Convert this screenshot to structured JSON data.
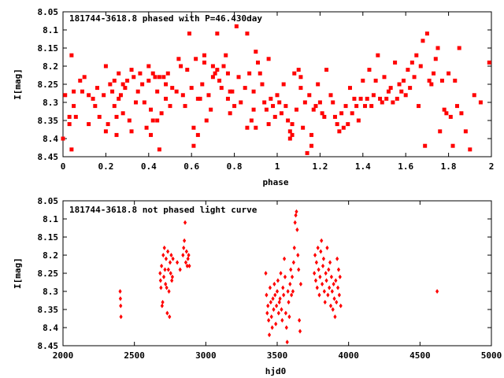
{
  "chart_data": [
    {
      "type": "scatter",
      "title": "181744-3618.8 phased with P=46.430day",
      "xlabel": "phase",
      "ylabel": "I[mag]",
      "xlim": [
        0,
        2
      ],
      "ylim": [
        8.05,
        8.45
      ],
      "y_inverted": true,
      "x_ticks": [
        "0",
        "0.2",
        "0.4",
        "0.6",
        "0.8",
        "1",
        "1.2",
        "1.4",
        "1.6",
        "1.8",
        "2"
      ],
      "y_ticks": [
        "8.05",
        "8.1",
        "8.15",
        "8.2",
        "8.25",
        "8.3",
        "8.35",
        "8.4",
        "8.45"
      ],
      "marker_color": "#ff0000",
      "grid": false,
      "points": [
        [
          0.0,
          8.4
        ],
        [
          0.01,
          8.28
        ],
        [
          0.03,
          8.34
        ],
        [
          0.03,
          8.36
        ],
        [
          0.04,
          8.17
        ],
        [
          0.04,
          8.43
        ],
        [
          0.05,
          8.27
        ],
        [
          0.05,
          8.31
        ],
        [
          0.06,
          8.34
        ],
        [
          0.08,
          8.24
        ],
        [
          0.09,
          8.27
        ],
        [
          0.1,
          8.23
        ],
        [
          0.12,
          8.28
        ],
        [
          0.12,
          8.36
        ],
        [
          0.14,
          8.29
        ],
        [
          0.15,
          8.31
        ],
        [
          0.16,
          8.26
        ],
        [
          0.17,
          8.34
        ],
        [
          0.19,
          8.28
        ],
        [
          0.2,
          8.2
        ],
        [
          0.2,
          8.38
        ],
        [
          0.21,
          8.36
        ],
        [
          0.22,
          8.25
        ],
        [
          0.23,
          8.27
        ],
        [
          0.24,
          8.24
        ],
        [
          0.24,
          8.31
        ],
        [
          0.25,
          8.34
        ],
        [
          0.25,
          8.39
        ],
        [
          0.26,
          8.22
        ],
        [
          0.26,
          8.29
        ],
        [
          0.27,
          8.28
        ],
        [
          0.28,
          8.25
        ],
        [
          0.28,
          8.33
        ],
        [
          0.29,
          8.26
        ],
        [
          0.3,
          8.24
        ],
        [
          0.31,
          8.35
        ],
        [
          0.32,
          8.38
        ],
        [
          0.32,
          8.21
        ],
        [
          0.33,
          8.23
        ],
        [
          0.34,
          8.3
        ],
        [
          0.35,
          8.27
        ],
        [
          0.36,
          8.22
        ],
        [
          0.37,
          8.25
        ],
        [
          0.38,
          8.3
        ],
        [
          0.39,
          8.37
        ],
        [
          0.4,
          8.2
        ],
        [
          0.4,
          8.24
        ],
        [
          0.41,
          8.32
        ],
        [
          0.41,
          8.39
        ],
        [
          0.42,
          8.22
        ],
        [
          0.42,
          8.35
        ],
        [
          0.43,
          8.23
        ],
        [
          0.44,
          8.27
        ],
        [
          0.44,
          8.35
        ],
        [
          0.45,
          8.23
        ],
        [
          0.45,
          8.43
        ],
        [
          0.46,
          8.33
        ],
        [
          0.47,
          8.23
        ],
        [
          0.48,
          8.25
        ],
        [
          0.48,
          8.29
        ],
        [
          0.49,
          8.22
        ],
        [
          0.5,
          8.31
        ],
        [
          0.51,
          8.26
        ],
        [
          0.53,
          8.27
        ],
        [
          0.54,
          8.18
        ],
        [
          0.55,
          8.2
        ],
        [
          0.56,
          8.28
        ],
        [
          0.57,
          8.31
        ],
        [
          0.58,
          8.21
        ],
        [
          0.59,
          8.11
        ],
        [
          0.6,
          8.26
        ],
        [
          0.61,
          8.37
        ],
        [
          0.61,
          8.42
        ],
        [
          0.62,
          8.18
        ],
        [
          0.63,
          8.29
        ],
        [
          0.63,
          8.39
        ],
        [
          0.64,
          8.29
        ],
        [
          0.65,
          8.25
        ],
        [
          0.66,
          8.17
        ],
        [
          0.66,
          8.19
        ],
        [
          0.67,
          8.35
        ],
        [
          0.68,
          8.28
        ],
        [
          0.69,
          8.32
        ],
        [
          0.7,
          8.2
        ],
        [
          0.7,
          8.23
        ],
        [
          0.71,
          8.22
        ],
        [
          0.72,
          8.11
        ],
        [
          0.72,
          8.21
        ],
        [
          0.73,
          8.24
        ],
        [
          0.74,
          8.26
        ],
        [
          0.75,
          8.2
        ],
        [
          0.76,
          8.17
        ],
        [
          0.77,
          8.22
        ],
        [
          0.77,
          8.29
        ],
        [
          0.78,
          8.27
        ],
        [
          0.78,
          8.33
        ],
        [
          0.79,
          8.27
        ],
        [
          0.8,
          8.31
        ],
        [
          0.81,
          8.09
        ],
        [
          0.82,
          8.23
        ],
        [
          0.83,
          8.3
        ],
        [
          0.85,
          8.26
        ],
        [
          0.86,
          8.11
        ],
        [
          0.86,
          8.37
        ],
        [
          0.87,
          8.22
        ],
        [
          0.88,
          8.35
        ],
        [
          0.89,
          8.27
        ],
        [
          0.89,
          8.32
        ],
        [
          0.9,
          8.16
        ],
        [
          0.9,
          8.37
        ],
        [
          0.91,
          8.19
        ],
        [
          0.92,
          8.22
        ],
        [
          0.93,
          8.25
        ],
        [
          0.94,
          8.3
        ],
        [
          0.95,
          8.32
        ],
        [
          0.96,
          8.18
        ],
        [
          0.96,
          8.36
        ],
        [
          0.97,
          8.29
        ],
        [
          0.98,
          8.31
        ],
        [
          0.99,
          8.34
        ],
        [
          1.0,
          8.28
        ],
        [
          1.01,
          8.3
        ],
        [
          1.02,
          8.33
        ],
        [
          1.03,
          8.25
        ],
        [
          1.04,
          8.31
        ],
        [
          1.05,
          8.35
        ],
        [
          1.06,
          8.38
        ],
        [
          1.06,
          8.4
        ],
        [
          1.07,
          8.36
        ],
        [
          1.07,
          8.39
        ],
        [
          1.08,
          8.22
        ],
        [
          1.09,
          8.32
        ],
        [
          1.1,
          8.21
        ],
        [
          1.11,
          8.23
        ],
        [
          1.11,
          8.26
        ],
        [
          1.12,
          8.37
        ],
        [
          1.13,
          8.3
        ],
        [
          1.14,
          8.44
        ],
        [
          1.15,
          8.28
        ],
        [
          1.16,
          8.39
        ],
        [
          1.16,
          8.42
        ],
        [
          1.17,
          8.32
        ],
        [
          1.18,
          8.31
        ],
        [
          1.19,
          8.25
        ],
        [
          1.2,
          8.3
        ],
        [
          1.21,
          8.33
        ],
        [
          1.22,
          8.34
        ],
        [
          1.23,
          8.21
        ],
        [
          1.25,
          8.28
        ],
        [
          1.26,
          8.3
        ],
        [
          1.27,
          8.34
        ],
        [
          1.28,
          8.36
        ],
        [
          1.29,
          8.38
        ],
        [
          1.3,
          8.33
        ],
        [
          1.31,
          8.37
        ],
        [
          1.32,
          8.31
        ],
        [
          1.33,
          8.36
        ],
        [
          1.34,
          8.26
        ],
        [
          1.35,
          8.33
        ],
        [
          1.36,
          8.29
        ],
        [
          1.37,
          8.31
        ],
        [
          1.38,
          8.35
        ],
        [
          1.39,
          8.29
        ],
        [
          1.4,
          8.24
        ],
        [
          1.41,
          8.31
        ],
        [
          1.42,
          8.29
        ],
        [
          1.43,
          8.21
        ],
        [
          1.44,
          8.31
        ],
        [
          1.45,
          8.28
        ],
        [
          1.46,
          8.24
        ],
        [
          1.47,
          8.17
        ],
        [
          1.48,
          8.29
        ],
        [
          1.49,
          8.3
        ],
        [
          1.5,
          8.23
        ],
        [
          1.51,
          8.29
        ],
        [
          1.52,
          8.27
        ],
        [
          1.53,
          8.26
        ],
        [
          1.54,
          8.3
        ],
        [
          1.55,
          8.19
        ],
        [
          1.56,
          8.29
        ],
        [
          1.57,
          8.25
        ],
        [
          1.58,
          8.27
        ],
        [
          1.59,
          8.24
        ],
        [
          1.6,
          8.28
        ],
        [
          1.61,
          8.21
        ],
        [
          1.62,
          8.26
        ],
        [
          1.63,
          8.19
        ],
        [
          1.64,
          8.23
        ],
        [
          1.65,
          8.17
        ],
        [
          1.66,
          8.31
        ],
        [
          1.67,
          8.2
        ],
        [
          1.68,
          8.13
        ],
        [
          1.69,
          8.42
        ],
        [
          1.7,
          8.11
        ],
        [
          1.71,
          8.24
        ],
        [
          1.72,
          8.25
        ],
        [
          1.73,
          8.22
        ],
        [
          1.74,
          8.18
        ],
        [
          1.75,
          8.15
        ],
        [
          1.76,
          8.38
        ],
        [
          1.77,
          8.24
        ],
        [
          1.78,
          8.32
        ],
        [
          1.79,
          8.33
        ],
        [
          1.8,
          8.22
        ],
        [
          1.81,
          8.34
        ],
        [
          1.82,
          8.42
        ],
        [
          1.83,
          8.24
        ],
        [
          1.84,
          8.31
        ],
        [
          1.85,
          8.15
        ],
        [
          1.86,
          8.33
        ],
        [
          1.88,
          8.38
        ],
        [
          1.9,
          8.43
        ],
        [
          1.92,
          8.28
        ],
        [
          1.95,
          8.3
        ],
        [
          1.99,
          8.19
        ]
      ]
    },
    {
      "type": "scatter",
      "title": "181744-3618.8 not phased light curve",
      "xlabel": "hjd0",
      "ylabel": "I[mag]",
      "xlim": [
        2000,
        5000
      ],
      "ylim": [
        8.05,
        8.45
      ],
      "y_inverted": true,
      "x_ticks": [
        "2000",
        "2500",
        "3000",
        "3500",
        "4000",
        "4500",
        "5000"
      ],
      "y_ticks": [
        "8.05",
        "8.1",
        "8.15",
        "8.2",
        "8.25",
        "8.3",
        "8.35",
        "8.4",
        "8.45"
      ],
      "marker_color": "#ff0000",
      "grid": false,
      "points": [
        [
          2400,
          8.3
        ],
        [
          2402,
          8.32
        ],
        [
          2404,
          8.34
        ],
        [
          2406,
          8.37
        ],
        [
          2680,
          8.25
        ],
        [
          2683,
          8.27
        ],
        [
          2686,
          8.29
        ],
        [
          2690,
          8.23
        ],
        [
          2694,
          8.34
        ],
        [
          2698,
          8.33
        ],
        [
          2702,
          8.2
        ],
        [
          2706,
          8.26
        ],
        [
          2710,
          8.18
        ],
        [
          2714,
          8.24
        ],
        [
          2718,
          8.28
        ],
        [
          2722,
          8.21
        ],
        [
          2726,
          8.29
        ],
        [
          2730,
          8.36
        ],
        [
          2734,
          8.19
        ],
        [
          2738,
          8.24
        ],
        [
          2742,
          8.3
        ],
        [
          2746,
          8.37
        ],
        [
          2750,
          8.22
        ],
        [
          2754,
          8.25
        ],
        [
          2758,
          8.2
        ],
        [
          2762,
          8.27
        ],
        [
          2766,
          8.26
        ],
        [
          2770,
          8.21
        ],
        [
          2800,
          8.22
        ],
        [
          2820,
          8.24
        ],
        [
          2840,
          8.2
        ],
        [
          2845,
          8.18
        ],
        [
          2850,
          8.16
        ],
        [
          2855,
          8.11
        ],
        [
          2860,
          8.22
        ],
        [
          2865,
          8.19
        ],
        [
          2870,
          8.23
        ],
        [
          2875,
          8.21
        ],
        [
          2880,
          8.2
        ],
        [
          2885,
          8.23
        ],
        [
          3420,
          8.25
        ],
        [
          3425,
          8.31
        ],
        [
          3430,
          8.36
        ],
        [
          3435,
          8.34
        ],
        [
          3440,
          8.38
        ],
        [
          3445,
          8.42
        ],
        [
          3450,
          8.29
        ],
        [
          3455,
          8.33
        ],
        [
          3460,
          8.37
        ],
        [
          3465,
          8.4
        ],
        [
          3470,
          8.32
        ],
        [
          3475,
          8.35
        ],
        [
          3480,
          8.28
        ],
        [
          3485,
          8.31
        ],
        [
          3490,
          8.39
        ],
        [
          3495,
          8.34
        ],
        [
          3500,
          8.3
        ],
        [
          3505,
          8.27
        ],
        [
          3510,
          8.36
        ],
        [
          3515,
          8.33
        ],
        [
          3520,
          8.32
        ],
        [
          3525,
          8.25
        ],
        [
          3530,
          8.35
        ],
        [
          3535,
          8.38
        ],
        [
          3540,
          8.29
        ],
        [
          3545,
          8.31
        ],
        [
          3550,
          8.21
        ],
        [
          3555,
          8.26
        ],
        [
          3560,
          8.36
        ],
        [
          3565,
          8.4
        ],
        [
          3570,
          8.44
        ],
        [
          3575,
          8.3
        ],
        [
          3580,
          8.33
        ],
        [
          3585,
          8.37
        ],
        [
          3590,
          8.28
        ],
        [
          3595,
          8.24
        ],
        [
          3600,
          8.31
        ],
        [
          3605,
          8.26
        ],
        [
          3610,
          8.3
        ],
        [
          3615,
          8.22
        ],
        [
          3620,
          8.18
        ],
        [
          3625,
          8.11
        ],
        [
          3630,
          8.09
        ],
        [
          3635,
          8.08
        ],
        [
          3640,
          8.13
        ],
        [
          3645,
          8.2
        ],
        [
          3650,
          8.24
        ],
        [
          3655,
          8.38
        ],
        [
          3660,
          8.41
        ],
        [
          3665,
          8.28
        ],
        [
          3760,
          8.25
        ],
        [
          3765,
          8.2
        ],
        [
          3770,
          8.27
        ],
        [
          3775,
          8.22
        ],
        [
          3780,
          8.29
        ],
        [
          3785,
          8.18
        ],
        [
          3790,
          8.24
        ],
        [
          3795,
          8.31
        ],
        [
          3800,
          8.26
        ],
        [
          3805,
          8.19
        ],
        [
          3810,
          8.16
        ],
        [
          3815,
          8.28
        ],
        [
          3820,
          8.23
        ],
        [
          3825,
          8.21
        ],
        [
          3830,
          8.3
        ],
        [
          3835,
          8.33
        ],
        [
          3840,
          8.25
        ],
        [
          3845,
          8.27
        ],
        [
          3850,
          8.18
        ],
        [
          3855,
          8.31
        ],
        [
          3860,
          8.24
        ],
        [
          3865,
          8.29
        ],
        [
          3870,
          8.22
        ],
        [
          3875,
          8.34
        ],
        [
          3880,
          8.26
        ],
        [
          3885,
          8.3
        ],
        [
          3890,
          8.35
        ],
        [
          3895,
          8.28
        ],
        [
          3900,
          8.32
        ],
        [
          3905,
          8.37
        ],
        [
          3910,
          8.27
        ],
        [
          3915,
          8.33
        ],
        [
          3920,
          8.21
        ],
        [
          3925,
          8.29
        ],
        [
          3930,
          8.24
        ],
        [
          3935,
          8.31
        ],
        [
          3940,
          8.26
        ],
        [
          3945,
          8.34
        ],
        [
          4620,
          8.3
        ]
      ]
    }
  ]
}
